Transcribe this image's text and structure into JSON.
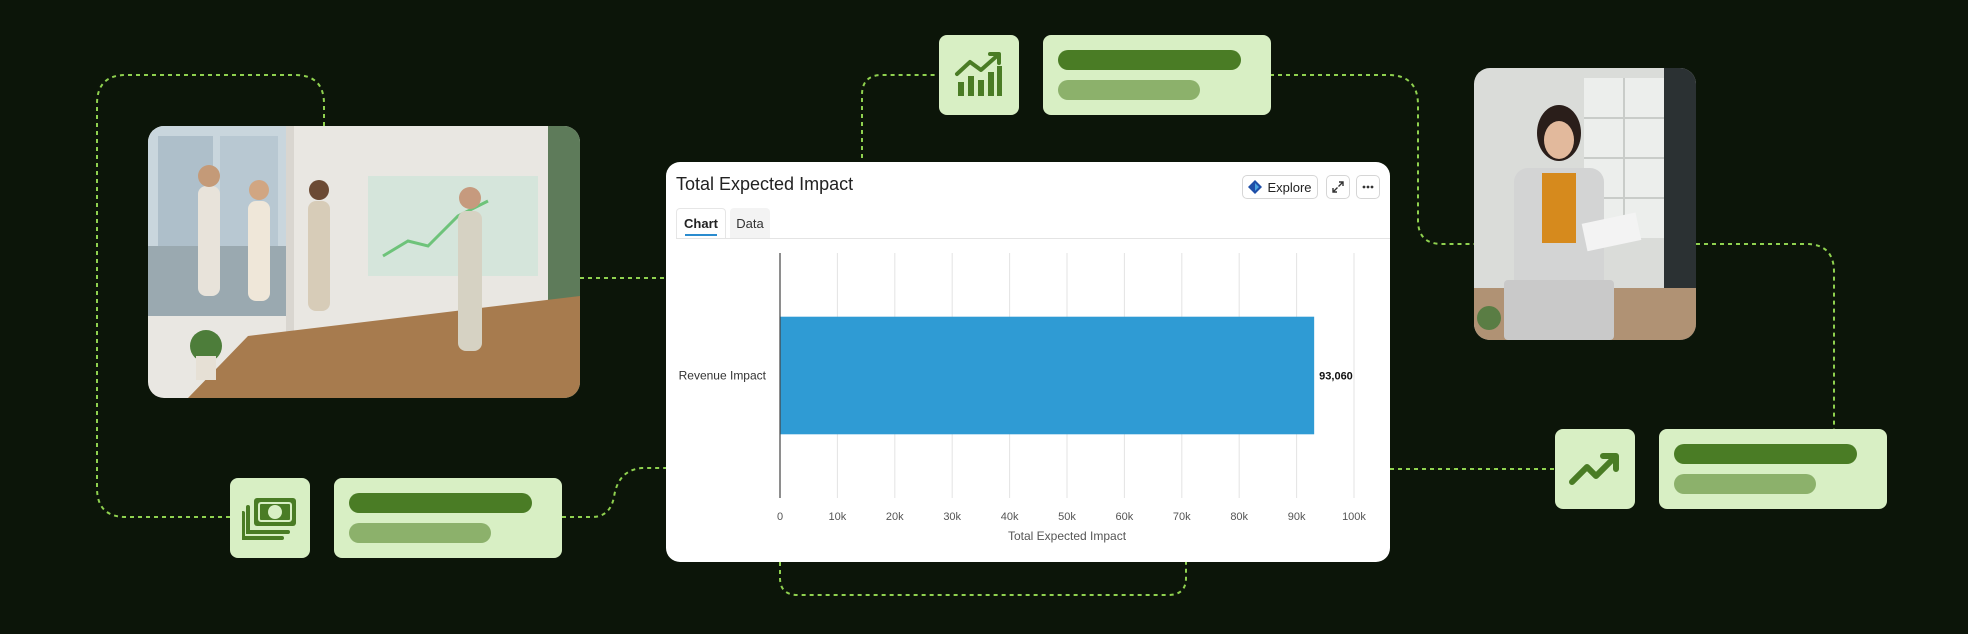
{
  "card": {
    "title": "Total Expected Impact",
    "explore_label": "Explore",
    "expand_icon": "expand-icon",
    "more_icon": "more-icon",
    "tabs": [
      {
        "label": "Chart",
        "active": true
      },
      {
        "label": "Data",
        "active": false
      }
    ]
  },
  "chart_data": {
    "type": "bar",
    "orientation": "horizontal",
    "categories": [
      "Revenue Impact"
    ],
    "values": [
      93060
    ],
    "value_labels": [
      "93,060"
    ],
    "xlabel": "Total Expected Impact",
    "ylabel": "",
    "xlim": [
      0,
      100000
    ],
    "xticks": [
      0,
      10000,
      20000,
      30000,
      40000,
      50000,
      60000,
      70000,
      80000,
      90000,
      100000
    ],
    "xtick_labels": [
      "0",
      "10k",
      "20k",
      "30k",
      "40k",
      "50k",
      "60k",
      "70k",
      "80k",
      "90k",
      "100k"
    ],
    "grid": true,
    "bar_color": "#2f9bd4"
  },
  "decor": {
    "accent_dark": "#4a7c25",
    "accent_light": "#d8efc4",
    "connector_color": "#8fd14f",
    "icons": [
      "bar-chart-trend-icon",
      "cash-icon",
      "trend-up-icon"
    ]
  }
}
